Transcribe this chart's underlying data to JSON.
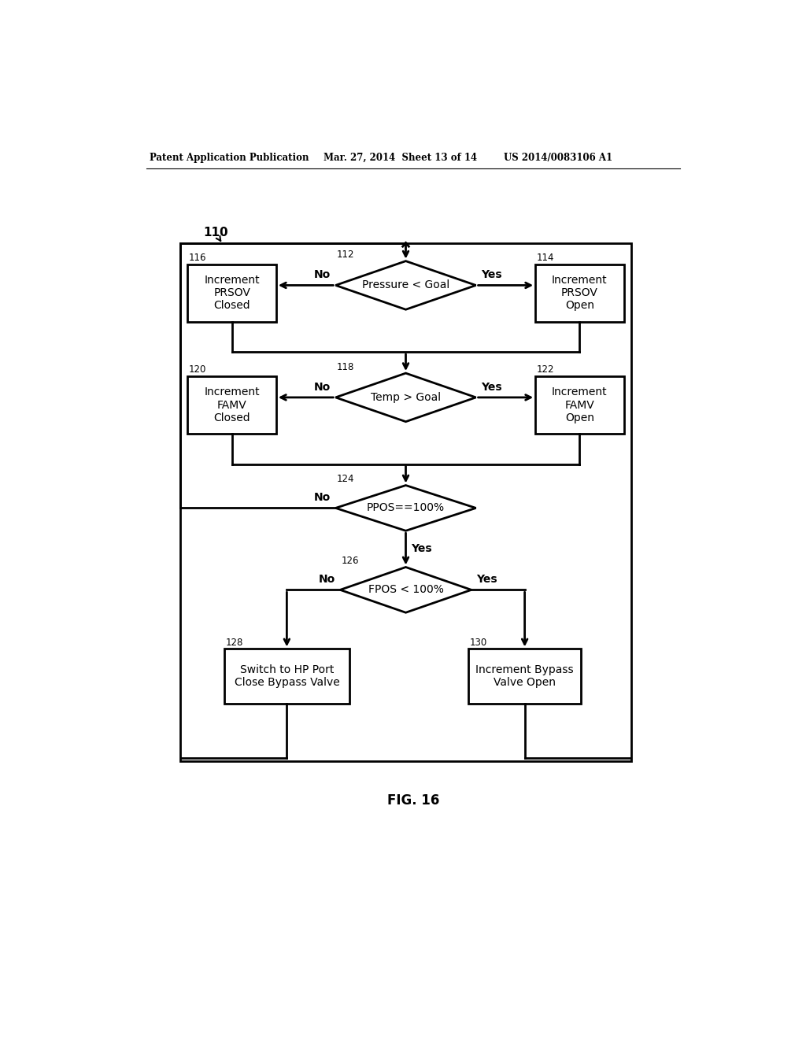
{
  "bg_color": "#ffffff",
  "header_left": "Patent Application Publication",
  "header_mid": "Mar. 27, 2014  Sheet 13 of 14",
  "header_right": "US 2014/0083106 A1",
  "fig_label": "FIG. 16",
  "diagram_label": "110",
  "font_size_node": 10,
  "font_size_ref": 8.5,
  "font_size_header": 8.5,
  "font_size_fig": 12,
  "font_size_yesno": 10
}
